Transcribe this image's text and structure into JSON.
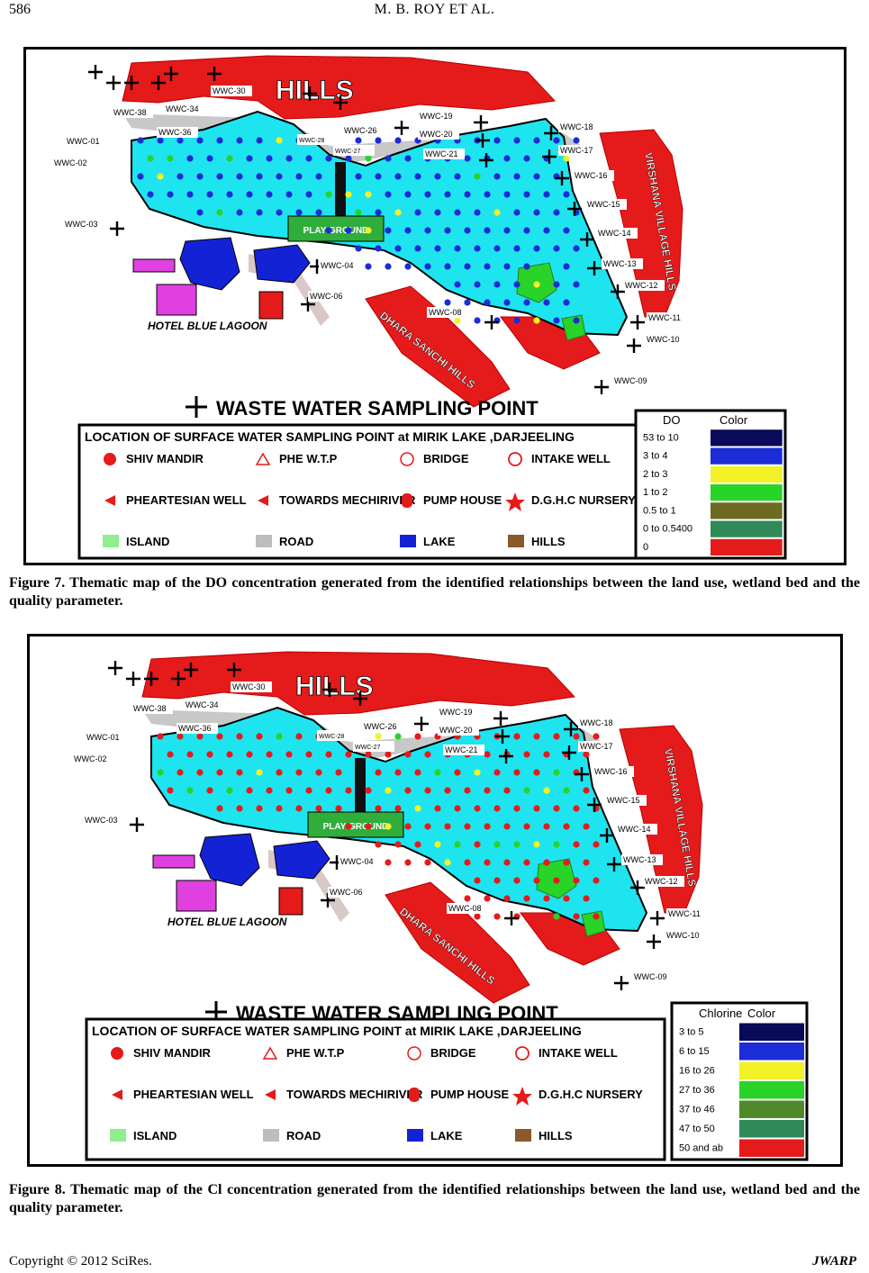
{
  "header": {
    "page_number": "586",
    "running_head": "M. B. ROY    ET    AL."
  },
  "figures": [
    {
      "caption": "Figure 7. Thematic map of the DO concentration generated from the identified relationships between the land use, wetland bed and the quality parameter.",
      "map_labels": {
        "hills": "HILLS",
        "play_ground": "PLAY GROUND",
        "hotel": "HOTEL BLUE LAGOON",
        "dhara_hills": "DHARA SANCHI HILLS",
        "virshana_hills": "VIRSHANA VILLAGE HILLS",
        "sampling_title": "WASTE WATER SAMPLING POINT"
      },
      "legend_title": "LOCATION OF SURFACE WATER SAMPLING POINT at MIRIK LAKE ,DARJEELING",
      "legend_items": [
        "SHIV MANDIR",
        "PHE W.T.P",
        "BRIDGE",
        "INTAKE WELL",
        "PHEARTESIAN WELL",
        "TOWARDS MECHIRIVER",
        "PUMP HOUSE",
        "D.G.H.C NURSERY",
        "ISLAND",
        "ROAD",
        "LAKE",
        "HILLS"
      ],
      "scale": {
        "header_param": "DO",
        "header_color": "Color",
        "rows": [
          {
            "label": "53 to 10",
            "color": "#0a0a5a"
          },
          {
            "label": "3 to 4",
            "color": "#1c2cd6"
          },
          {
            "label": "2 to 3",
            "color": "#f2f227"
          },
          {
            "label": "1 to 2",
            "color": "#27d427"
          },
          {
            "label": "0.5 to 1",
            "color": "#6e6a22"
          },
          {
            "label": "0 to 0.5400",
            "color": "#2f8a58"
          },
          {
            "label": "0",
            "color": "#e51a1a"
          }
        ]
      },
      "points": [
        "WWC-38",
        "WWC-34",
        "WWC-30",
        "WWC-36",
        "WWC-01",
        "WWC-02",
        "WWC-28",
        "WWC-27",
        "WWC-26",
        "WWC-19",
        "WWC-20",
        "WWC-21",
        "WWC-18",
        "WWC-17",
        "WWC-16",
        "WWC-15",
        "WWC-14",
        "WWC-13",
        "WWC-12",
        "WWC-11",
        "WWC-10",
        "WWC-09",
        "WWC-03",
        "WWC-04",
        "WWC-06",
        "WWC-08"
      ]
    },
    {
      "caption": "Figure 8. Thematic map of the Cl concentration generated from the identified relationships between the land use, wetland bed and the quality parameter.",
      "map_labels": {
        "hills": "HILLS",
        "play_ground": "PLAY GROUND",
        "hotel": "HOTEL BLUE LAGOON",
        "dhara_hills": "DHARA SANCHI HILLS",
        "virshana_hills": "VIRSHANA VILLAGE HILLS",
        "sampling_title": "WASTE WATER SAMPLING POINT"
      },
      "legend_title": "LOCATION OF SURFACE WATER SAMPLING POINT at MIRIK LAKE ,DARJEELING",
      "legend_items": [
        "SHIV MANDIR",
        "PHE W.T.P",
        "BRIDGE",
        "INTAKE WELL",
        "PHEARTESIAN WELL",
        "TOWARDS MECHIRIVER",
        "PUMP HOUSE",
        "D.G.H.C NURSERY",
        "ISLAND",
        "ROAD",
        "LAKE",
        "HILLS"
      ],
      "scale": {
        "header_param": "Chlorine",
        "header_color": "Color",
        "rows": [
          {
            "label": "3 to 5",
            "color": "#0a0a5a"
          },
          {
            "label": "6 to 15",
            "color": "#1c2cd6"
          },
          {
            "label": "16 to 26",
            "color": "#f2f227"
          },
          {
            "label": "27 to 36",
            "color": "#27d427"
          },
          {
            "label": "37 to 46",
            "color": "#4f8a2a"
          },
          {
            "label": "47 to 50",
            "color": "#2f8a58"
          },
          {
            "label": "50 and ab",
            "color": "#e51a1a"
          }
        ]
      },
      "points": [
        "WWC-38",
        "WWC-34",
        "WWC-30",
        "WWC-36",
        "WWC-01",
        "WWC-02",
        "WWC-28",
        "WWC-27",
        "WWC-26",
        "WWC-19",
        "WWC-20",
        "WWC-21",
        "WWC-18",
        "WWC-17",
        "WWC-16",
        "WWC-15",
        "WWC-14",
        "WWC-13",
        "WWC-12",
        "WWC-11",
        "WWC-10",
        "WWC-09",
        "WWC-03",
        "WWC-04",
        "WWC-06",
        "WWC-08"
      ]
    }
  ],
  "footer": {
    "copyright": "Copyright © 2012 SciRes.",
    "journal": "JWARP"
  }
}
